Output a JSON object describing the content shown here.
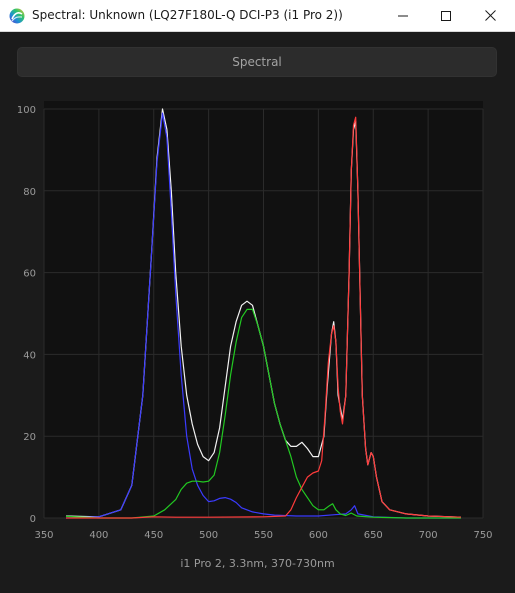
{
  "window": {
    "title": "Spectral: Unknown (LQ27F180L-Q DCI-P3 (i1 Pro 2))",
    "icon": "spectral-app-icon",
    "controls": [
      "minimize-icon",
      "maximize-icon",
      "close-icon"
    ]
  },
  "toolbar": {
    "tab_label": "Spectral"
  },
  "chart_caption": "i1 Pro 2, 3.3nm, 370-730nm",
  "colors": {
    "background": "#111111",
    "grid": "#2b2b2b",
    "white": "#f2f2f2",
    "blue": "#3b3bff",
    "green": "#22c922",
    "red": "#ff3b3b",
    "tick_text": "#9a9a9a"
  },
  "chart_data": {
    "type": "line",
    "title": "",
    "xlabel": "i1 Pro 2, 3.3nm, 370-730nm",
    "ylabel": "",
    "xlim": [
      350,
      750
    ],
    "ylim": [
      0,
      100
    ],
    "x_ticks": [
      350,
      400,
      450,
      500,
      550,
      600,
      650,
      700,
      750
    ],
    "y_ticks": [
      0,
      20,
      40,
      60,
      80,
      100
    ],
    "grid": true,
    "legend": "none",
    "series": [
      {
        "color": "#f2f2f2",
        "points": [
          [
            370,
            0.5
          ],
          [
            400,
            0.3
          ],
          [
            420,
            2
          ],
          [
            430,
            8
          ],
          [
            440,
            30
          ],
          [
            448,
            65
          ],
          [
            453,
            88
          ],
          [
            458,
            100
          ],
          [
            462,
            95
          ],
          [
            466,
            80
          ],
          [
            470,
            60
          ],
          [
            475,
            42
          ],
          [
            480,
            30
          ],
          [
            485,
            23
          ],
          [
            490,
            18
          ],
          [
            495,
            15
          ],
          [
            500,
            14
          ],
          [
            505,
            16
          ],
          [
            510,
            22
          ],
          [
            515,
            32
          ],
          [
            520,
            42
          ],
          [
            525,
            48
          ],
          [
            530,
            52
          ],
          [
            535,
            53
          ],
          [
            540,
            52
          ],
          [
            545,
            47
          ],
          [
            550,
            42
          ],
          [
            555,
            35
          ],
          [
            560,
            28
          ],
          [
            565,
            23
          ],
          [
            570,
            19
          ],
          [
            575,
            17.5
          ],
          [
            580,
            17.5
          ],
          [
            585,
            18.5
          ],
          [
            590,
            17
          ],
          [
            595,
            15
          ],
          [
            600,
            15
          ],
          [
            605,
            20
          ],
          [
            608,
            32
          ],
          [
            612,
            45
          ],
          [
            614,
            48
          ],
          [
            616,
            43
          ],
          [
            618,
            30
          ],
          [
            622,
            24
          ],
          [
            625,
            30
          ],
          [
            628,
            60
          ],
          [
            630,
            85
          ],
          [
            632,
            95
          ],
          [
            634,
            97
          ],
          [
            636,
            80
          ],
          [
            638,
            55
          ],
          [
            640,
            30
          ],
          [
            643,
            17
          ],
          [
            645,
            13
          ],
          [
            648,
            16
          ],
          [
            650,
            15
          ],
          [
            653,
            10
          ],
          [
            658,
            4
          ],
          [
            665,
            2
          ],
          [
            680,
            1
          ],
          [
            700,
            0.5
          ],
          [
            730,
            0.2
          ]
        ]
      },
      {
        "color": "#3b3bff",
        "points": [
          [
            370,
            0
          ],
          [
            400,
            0.3
          ],
          [
            420,
            2
          ],
          [
            430,
            8
          ],
          [
            440,
            30
          ],
          [
            448,
            65
          ],
          [
            453,
            87
          ],
          [
            458,
            99
          ],
          [
            462,
            93
          ],
          [
            466,
            75
          ],
          [
            470,
            55
          ],
          [
            475,
            35
          ],
          [
            480,
            20
          ],
          [
            485,
            12
          ],
          [
            490,
            8
          ],
          [
            495,
            5.5
          ],
          [
            500,
            4
          ],
          [
            505,
            4.2
          ],
          [
            510,
            4.8
          ],
          [
            515,
            5
          ],
          [
            520,
            4.6
          ],
          [
            525,
            3.8
          ],
          [
            530,
            2.5
          ],
          [
            540,
            1.5
          ],
          [
            550,
            1
          ],
          [
            560,
            0.7
          ],
          [
            580,
            0.5
          ],
          [
            600,
            0.5
          ],
          [
            615,
            0.8
          ],
          [
            625,
            1
          ],
          [
            630,
            2
          ],
          [
            633,
            3
          ],
          [
            636,
            1
          ],
          [
            650,
            0.3
          ],
          [
            680,
            0
          ],
          [
            730,
            0
          ]
        ]
      },
      {
        "color": "#22c922",
        "points": [
          [
            370,
            0.4
          ],
          [
            400,
            0
          ],
          [
            430,
            0
          ],
          [
            450,
            0.5
          ],
          [
            460,
            2
          ],
          [
            470,
            4.5
          ],
          [
            475,
            7
          ],
          [
            480,
            8.5
          ],
          [
            485,
            9
          ],
          [
            490,
            9
          ],
          [
            495,
            8.8
          ],
          [
            500,
            9
          ],
          [
            505,
            10.5
          ],
          [
            510,
            16
          ],
          [
            515,
            25
          ],
          [
            520,
            35
          ],
          [
            525,
            43
          ],
          [
            530,
            49
          ],
          [
            535,
            51
          ],
          [
            540,
            51
          ],
          [
            545,
            47
          ],
          [
            550,
            42
          ],
          [
            555,
            35
          ],
          [
            560,
            28
          ],
          [
            565,
            23
          ],
          [
            570,
            19
          ],
          [
            575,
            15
          ],
          [
            580,
            10
          ],
          [
            585,
            7
          ],
          [
            590,
            5
          ],
          [
            595,
            3
          ],
          [
            600,
            2
          ],
          [
            605,
            2
          ],
          [
            610,
            3
          ],
          [
            613,
            3.5
          ],
          [
            616,
            2
          ],
          [
            620,
            1
          ],
          [
            625,
            0.6
          ],
          [
            630,
            1.2
          ],
          [
            635,
            0.5
          ],
          [
            650,
            0.2
          ],
          [
            680,
            0
          ],
          [
            730,
            0
          ]
        ]
      },
      {
        "color": "#ff3b3b",
        "points": [
          [
            370,
            0
          ],
          [
            400,
            0
          ],
          [
            430,
            0
          ],
          [
            450,
            0.3
          ],
          [
            470,
            0.2
          ],
          [
            500,
            0.2
          ],
          [
            550,
            0.3
          ],
          [
            570,
            0.5
          ],
          [
            575,
            2
          ],
          [
            580,
            5
          ],
          [
            585,
            7.5
          ],
          [
            590,
            10
          ],
          [
            595,
            11
          ],
          [
            600,
            11.5
          ],
          [
            603,
            14
          ],
          [
            606,
            25
          ],
          [
            609,
            38
          ],
          [
            612,
            45
          ],
          [
            614,
            47
          ],
          [
            616,
            43
          ],
          [
            618,
            32
          ],
          [
            620,
            26
          ],
          [
            622,
            23
          ],
          [
            625,
            30
          ],
          [
            628,
            60
          ],
          [
            630,
            85
          ],
          [
            632,
            96
          ],
          [
            634,
            98
          ],
          [
            636,
            80
          ],
          [
            638,
            55
          ],
          [
            640,
            30
          ],
          [
            643,
            17
          ],
          [
            645,
            13
          ],
          [
            648,
            16
          ],
          [
            650,
            15
          ],
          [
            653,
            10
          ],
          [
            658,
            4
          ],
          [
            665,
            2
          ],
          [
            680,
            1
          ],
          [
            700,
            0.5
          ],
          [
            730,
            0.2
          ]
        ]
      }
    ]
  }
}
